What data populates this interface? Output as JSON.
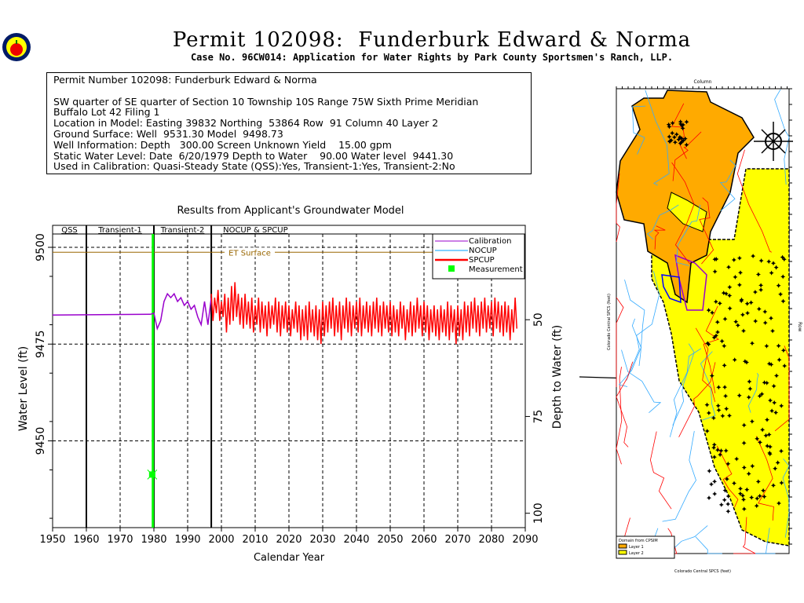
{
  "header": {
    "title": "Permit 102098:  Funderburk Edward & Norma",
    "subtitle": "Case No. 96CW014: Application for Water Rights by Park County Sportsmen's Ranch, LLP."
  },
  "info": {
    "lines": [
      "Permit Number 102098: Funderburk Edward & Norma",
      "",
      "SW quarter of SE quarter of Section 10 Township 10S Range 75W Sixth Prime Meridian",
      "Buffalo Lot 42 Filing 1",
      "Location in Model: Easting 39832 Northing  53864 Row  91 Column 40 Layer 2",
      "Ground Surface: Well  9531.30 Model  9498.73",
      "Well Information: Depth   300.00 Screen Unknown Yield    15.00 gpm",
      "Static Water Level: Date  6/20/1979 Depth to Water    90.00 Water level  9441.30",
      "Used in Calibration: Quasi-Steady State (QSS):Yes, Transient-1:Yes, Transient-2:No"
    ]
  },
  "colors": {
    "calibration": "#9900cc",
    "nocup": "#00a0ff",
    "spcup": "#ff0000",
    "measurement": "#00ff00",
    "et": "#996600",
    "layer1": "#ffaa00",
    "layer2": "#ffff00"
  },
  "chart_data": {
    "type": "line",
    "title": "Results from Applicant's Groundwater Model",
    "xlabel": "Calendar Year",
    "ylabel": "Water Level (ft)",
    "y2label": "Depth to Water (ft)",
    "xlim": [
      1950,
      2090
    ],
    "ylim": [
      9427,
      9503
    ],
    "xticks": [
      1950,
      1960,
      1970,
      1980,
      1990,
      2000,
      2010,
      2020,
      2030,
      2040,
      2050,
      2060,
      2070,
      2080,
      2090
    ],
    "yticks": [
      9450,
      9475,
      9500
    ],
    "y2ticks": [
      50,
      75,
      100
    ],
    "ground_surface": 9531.3,
    "periods": [
      {
        "label": "QSS",
        "start": 1950,
        "end": 1960
      },
      {
        "label": "Transient-1",
        "start": 1960,
        "end": 1980
      },
      {
        "label": "Transient-2",
        "start": 1980,
        "end": 1997
      },
      {
        "label": "NOCUP & SPCUP",
        "start": 1997,
        "end": 2090
      }
    ],
    "et_surface": {
      "label": "ET Surface",
      "value": 9498.73
    },
    "legend": [
      "Calibration",
      "NOCUP",
      "SPCUP",
      "Measurement"
    ],
    "measurement": {
      "year": 1979.5,
      "value": 9441.3
    },
    "calibration": {
      "x": [
        1950,
        1979,
        1980,
        1981,
        1982,
        1983,
        1984,
        1985,
        1986,
        1987,
        1988,
        1989,
        1990,
        1991,
        1992,
        1993,
        1994,
        1995,
        1996,
        1997
      ],
      "y": [
        9482.5,
        9482.7,
        9483,
        9479,
        9481,
        9486,
        9488,
        9487,
        9488,
        9486,
        9487,
        9485,
        9486,
        9484,
        9485,
        9482,
        9480,
        9486,
        9480,
        9487
      ]
    },
    "spcup": {
      "start": 1997,
      "step": 0.5,
      "values": [
        9488,
        9481,
        9487,
        9483,
        9489,
        9481,
        9486,
        9482,
        9488,
        9478,
        9487,
        9480,
        9490,
        9481,
        9491,
        9482,
        9488,
        9480,
        9487,
        9479,
        9488,
        9480,
        9486,
        9479,
        9487,
        9478,
        9485,
        9480,
        9487,
        9478,
        9486,
        9479,
        9485,
        9477,
        9486,
        9479,
        9485,
        9480,
        9487,
        9478,
        9486,
        9477,
        9485,
        9479,
        9486,
        9478,
        9485,
        9477,
        9484,
        9479,
        9486,
        9478,
        9485,
        9476,
        9484,
        9477,
        9485,
        9476,
        9486,
        9478,
        9484,
        9477,
        9485,
        9476,
        9484,
        9475,
        9486,
        9477,
        9485,
        9478,
        9486,
        9479,
        9487,
        9477,
        9485,
        9478,
        9486,
        9476,
        9485,
        9479,
        9487,
        9478,
        9486,
        9477,
        9485,
        9479,
        9486,
        9478,
        9487,
        9477,
        9485,
        9479,
        9486,
        9478,
        9485,
        9477,
        9486,
        9479,
        9487,
        9478,
        9485,
        9477,
        9486,
        9479,
        9485,
        9478,
        9486,
        9477,
        9485,
        9478,
        9484,
        9477,
        9486,
        9479,
        9485,
        9476,
        9484,
        9478,
        9486,
        9477,
        9485,
        9478,
        9487,
        9479,
        9485,
        9477,
        9486,
        9478,
        9485,
        9476,
        9484,
        9478,
        9485,
        9477,
        9484,
        9476,
        9485,
        9478,
        9484,
        9477,
        9486,
        9476,
        9485,
        9478,
        9484,
        9475,
        9485,
        9477,
        9484,
        9476,
        9486,
        9478,
        9485,
        9477,
        9486,
        9479,
        9487,
        9478,
        9485,
        9477,
        9486,
        9479,
        9487,
        9478,
        9485,
        9479,
        9486,
        9477,
        9487,
        9479,
        9486,
        9478,
        9485,
        9477,
        9486,
        9478,
        9485,
        9476,
        9484,
        9478,
        9487,
        9479
      ]
    }
  },
  "map": {
    "top_axis": "Column",
    "right_axis": "Row",
    "axis_label": "Colorado Central SPCS (feet)",
    "legend_title": "Domain from CPSIM",
    "legend_items": [
      "Layer 1",
      "Layer 2"
    ]
  }
}
